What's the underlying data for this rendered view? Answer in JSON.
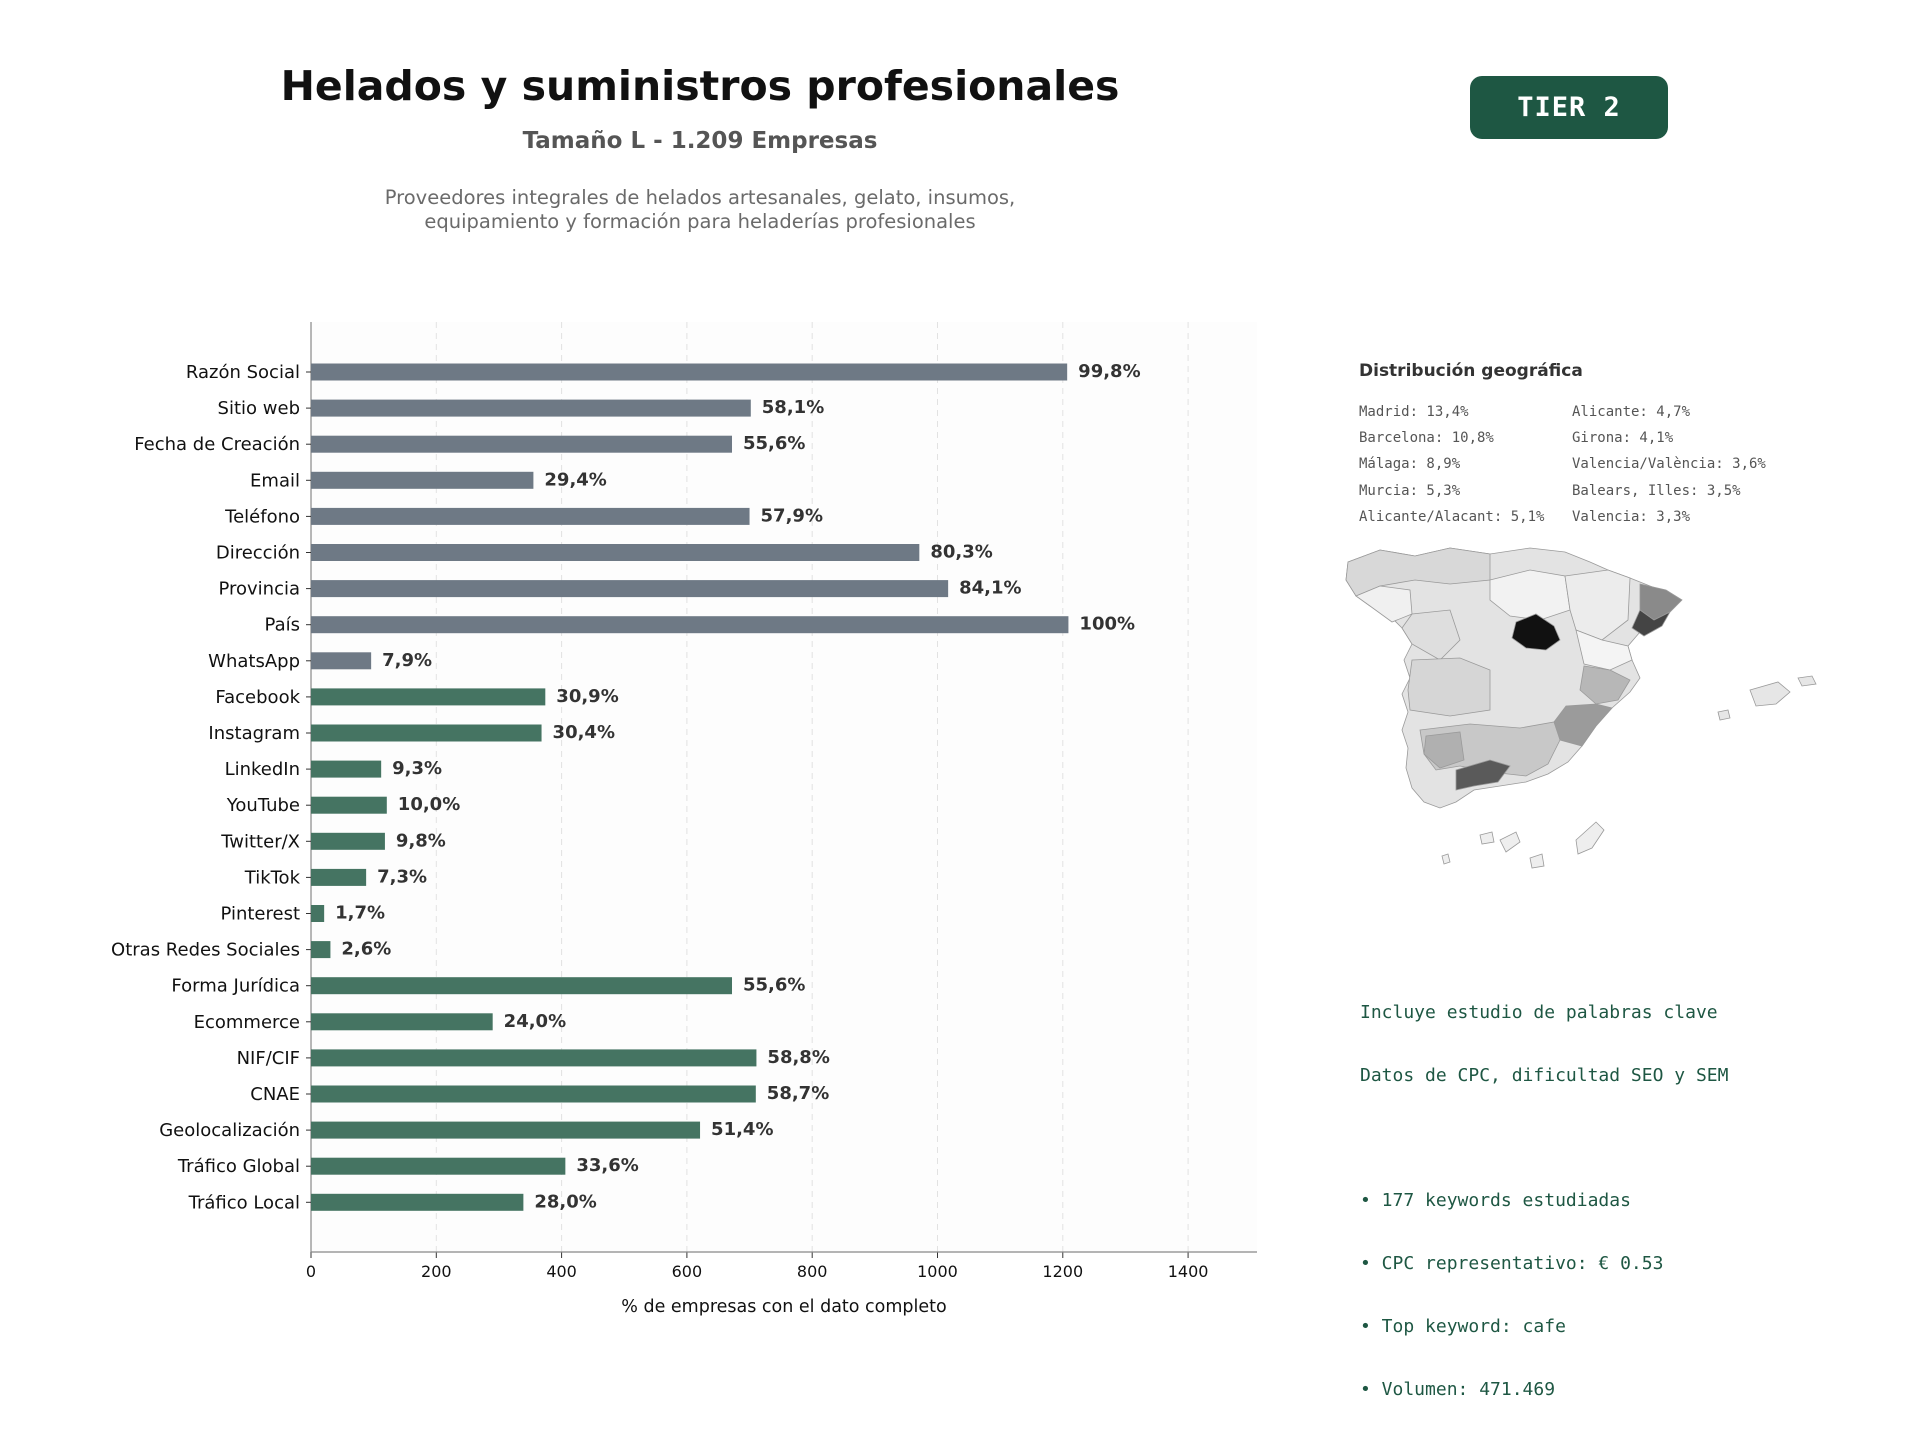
{
  "header": {
    "title": "Helados y suministros profesionales",
    "subtitle": "Tamaño L - 1.209 Empresas",
    "description_line1": "Proveedores integrales de helados artesanales, gelato, insumos,",
    "description_line2": "equipamiento y formación para heladerías profesionales",
    "tier_badge": "TIER 2"
  },
  "colors": {
    "basic_bar": "#6e7985",
    "digital_bar": "#457462",
    "accent": "#1e5743"
  },
  "chart_data": {
    "type": "bar",
    "orientation": "horizontal",
    "categories": [
      "Razón Social",
      "Sitio web",
      "Fecha de Creación",
      "Email",
      "Teléfono",
      "Dirección",
      "Provincia",
      "País",
      "WhatsApp",
      "Facebook",
      "Instagram",
      "LinkedIn",
      "YouTube",
      "Twitter/X",
      "TikTok",
      "Pinterest",
      "Otras Redes Sociales",
      "Forma Jurídica",
      "Ecommerce",
      "NIF/CIF",
      "CNAE",
      "Geolocalización",
      "Tráfico Global",
      "Tráfico Local"
    ],
    "values": [
      1207,
      702,
      672,
      355,
      700,
      971,
      1017,
      1209,
      96,
      374,
      368,
      112,
      121,
      118,
      88,
      21,
      31,
      672,
      290,
      711,
      710,
      621,
      406,
      339
    ],
    "labels": [
      "99,8%",
      "58,1%",
      "55,6%",
      "29,4%",
      "57,9%",
      "80,3%",
      "84,1%",
      "100%",
      "7,9%",
      "30,9%",
      "30,4%",
      "9,3%",
      "10,0%",
      "9,8%",
      "7,3%",
      "1,7%",
      "2,6%",
      "55,6%",
      "24,0%",
      "58,8%",
      "58,7%",
      "51,4%",
      "33,6%",
      "28,0%"
    ],
    "groups": [
      "basic",
      "basic",
      "basic",
      "basic",
      "basic",
      "basic",
      "basic",
      "basic",
      "basic",
      "digital",
      "digital",
      "digital",
      "digital",
      "digital",
      "digital",
      "digital",
      "digital",
      "digital",
      "digital",
      "digital",
      "digital",
      "digital",
      "digital",
      "digital"
    ],
    "xlabel": "% de empresas con el dato completo",
    "xlim": [
      0,
      1510
    ],
    "xticks": [
      0,
      200,
      400,
      600,
      800,
      1000,
      1200,
      1400
    ],
    "grid": "vertical dashed"
  },
  "geo": {
    "title": "Distribución geográfica",
    "col1": [
      "Madrid: 13,4%",
      "Barcelona: 10,8%",
      "Málaga: 8,9%",
      "Murcia: 5,3%",
      "Alicante/Alacant: 5,1%"
    ],
    "col2": [
      "Alicante: 4,7%",
      "Girona: 4,1%",
      "Valencia/València: 3,6%",
      "Balears, Illes: 3,5%",
      "Valencia: 3,3%"
    ]
  },
  "keywords": {
    "line1": "Incluye estudio de palabras clave",
    "line2": "Datos de CPC, dificultad SEO y SEM",
    "bullets": [
      "• 177 keywords estudiadas",
      "• CPC representativo: € 0.53",
      "• Top keyword: cafe",
      "• Volumen: 471.469"
    ]
  }
}
